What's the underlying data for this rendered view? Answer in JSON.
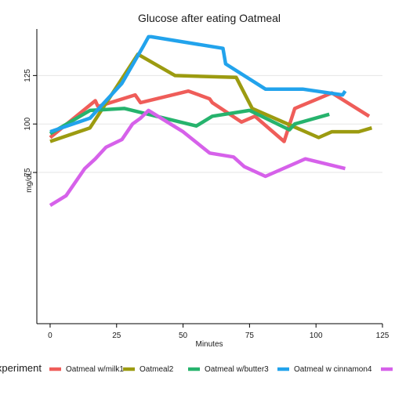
{
  "chart_data": {
    "type": "line",
    "title": "Glucose after eating Oatmeal",
    "xlabel": "Minutes",
    "ylabel": "mg/dL",
    "xlim": [
      -5,
      125
    ],
    "ylim": [
      -3,
      149
    ],
    "x_ticks": [
      0,
      25,
      50,
      75,
      100,
      125
    ],
    "y_ticks": [
      75,
      100,
      125
    ],
    "grid": true,
    "legend": {
      "title": "Experiment",
      "placement": "bottom"
    },
    "series": [
      {
        "name": "Oatmeal w/milk1",
        "color": "#ef5d59",
        "x": [
          0,
          17,
          18,
          32,
          34,
          52,
          60,
          61,
          72,
          77,
          88,
          92,
          106,
          120
        ],
        "y": [
          93,
          112,
          109,
          115,
          111,
          117,
          113,
          111,
          101,
          104,
          91,
          108,
          116,
          104
        ]
      },
      {
        "name": "Oatmeal2",
        "color": "#9c9b10",
        "x": [
          0,
          15,
          33,
          47,
          70,
          76,
          101,
          106,
          116,
          121
        ],
        "y": [
          91,
          98,
          136,
          125,
          124,
          108,
          93,
          96,
          96,
          98
        ]
      },
      {
        "name": "Oatmeal w/butter3",
        "color": "#26b36d",
        "x": [
          0,
          15,
          28,
          55,
          61,
          75,
          90,
          92,
          105
        ],
        "y": [
          95,
          107,
          108,
          99,
          104,
          107,
          97,
          100,
          105
        ]
      },
      {
        "name": "Oatmeal w cinnamon4",
        "color": "#22a3ec",
        "x": [
          0,
          15,
          27,
          35,
          37,
          38,
          65,
          66,
          81,
          95,
          110,
          111
        ],
        "y": [
          96,
          103,
          121,
          140,
          145,
          145,
          139,
          131,
          118,
          118,
          115,
          117
        ]
      },
      {
        "name": "",
        "color": "#d661ea",
        "x": [
          0,
          6,
          13,
          17,
          21,
          27,
          31,
          34,
          37,
          50,
          60,
          69,
          73,
          81,
          96,
          111
        ],
        "y": [
          58,
          63,
          77,
          82,
          88,
          92,
          100,
          103,
          107,
          96,
          85,
          83,
          78,
          73,
          82,
          77
        ]
      }
    ]
  }
}
